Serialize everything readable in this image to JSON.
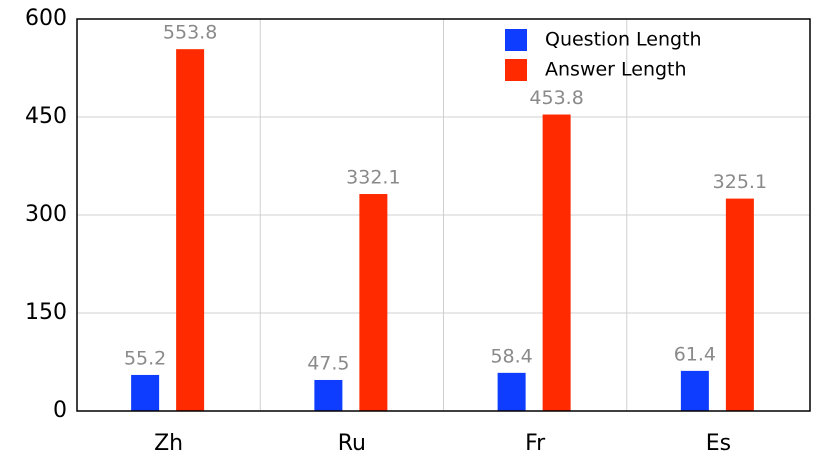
{
  "chart_data": {
    "type": "bar",
    "categories": [
      "Zh",
      "Ru",
      "Fr",
      "Es"
    ],
    "series": [
      {
        "name": "Question Length",
        "color": "#0f3dff",
        "values": [
          55.2,
          47.5,
          58.4,
          61.4
        ]
      },
      {
        "name": "Answer Length",
        "color": "#ff2a00",
        "values": [
          553.8,
          332.1,
          453.8,
          325.1
        ]
      }
    ],
    "ylim": [
      0,
      600
    ],
    "yticks": [
      0,
      150,
      300,
      450,
      600
    ],
    "grid": true,
    "legend": "upper right"
  }
}
